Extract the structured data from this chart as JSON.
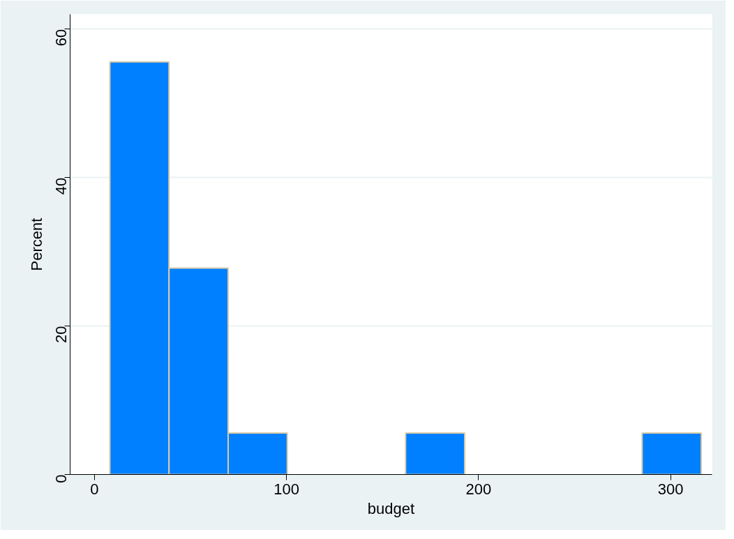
{
  "chart_data": {
    "type": "histogram",
    "xlabel": "budget",
    "ylabel": "Percent",
    "bins": [
      8,
      38.8,
      69.6,
      100.4,
      131.2,
      162,
      192.8,
      223.6,
      254.4,
      285.2,
      316
    ],
    "values": [
      55.6,
      27.8,
      5.6,
      0,
      0,
      5.6,
      0,
      0,
      0,
      5.6
    ],
    "color": "#0080ff",
    "xlim": [
      -12.7,
      321.6
    ],
    "ylim": [
      0,
      62
    ],
    "xticks": [
      0,
      100,
      200,
      300
    ],
    "yticks": [
      0,
      20,
      40,
      60
    ],
    "grid": "y"
  }
}
